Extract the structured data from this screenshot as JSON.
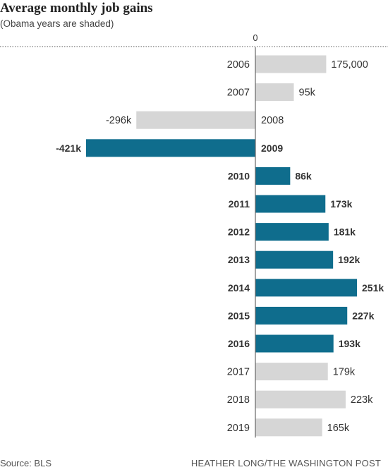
{
  "header": {
    "title": "Average monthly job gains",
    "subtitle": "(Obama years are shaded)"
  },
  "footer": {
    "source": "Source: BLS",
    "credit": "HEATHER LONG/THE WASHINGTON POST"
  },
  "colors": {
    "highlight": "#0f6d8d",
    "normal": "#d6d6d6",
    "axis": "#666666",
    "text": "#333333"
  },
  "chart_data": {
    "type": "bar",
    "orientation": "horizontal",
    "title": "Average monthly job gains",
    "subtitle": "(Obama years are shaded)",
    "zero_label": "0",
    "categories": [
      "2006",
      "2007",
      "2008",
      "2009",
      "2010",
      "2011",
      "2012",
      "2013",
      "2014",
      "2015",
      "2016",
      "2017",
      "2018",
      "2019"
    ],
    "values": [
      175000,
      95000,
      -296000,
      -421000,
      86000,
      173000,
      181000,
      192000,
      251000,
      227000,
      193000,
      179000,
      223000,
      165000
    ],
    "value_labels": [
      "175,000",
      "95k",
      "-296k",
      "-421k",
      "86k",
      "173k",
      "181k",
      "192k",
      "251k",
      "227k",
      "193k",
      "179k",
      "223k",
      "165k"
    ],
    "highlighted": [
      false,
      false,
      false,
      true,
      true,
      true,
      true,
      true,
      true,
      true,
      true,
      false,
      false,
      false
    ],
    "xlim": [
      -421000,
      251000
    ],
    "grid": false
  }
}
